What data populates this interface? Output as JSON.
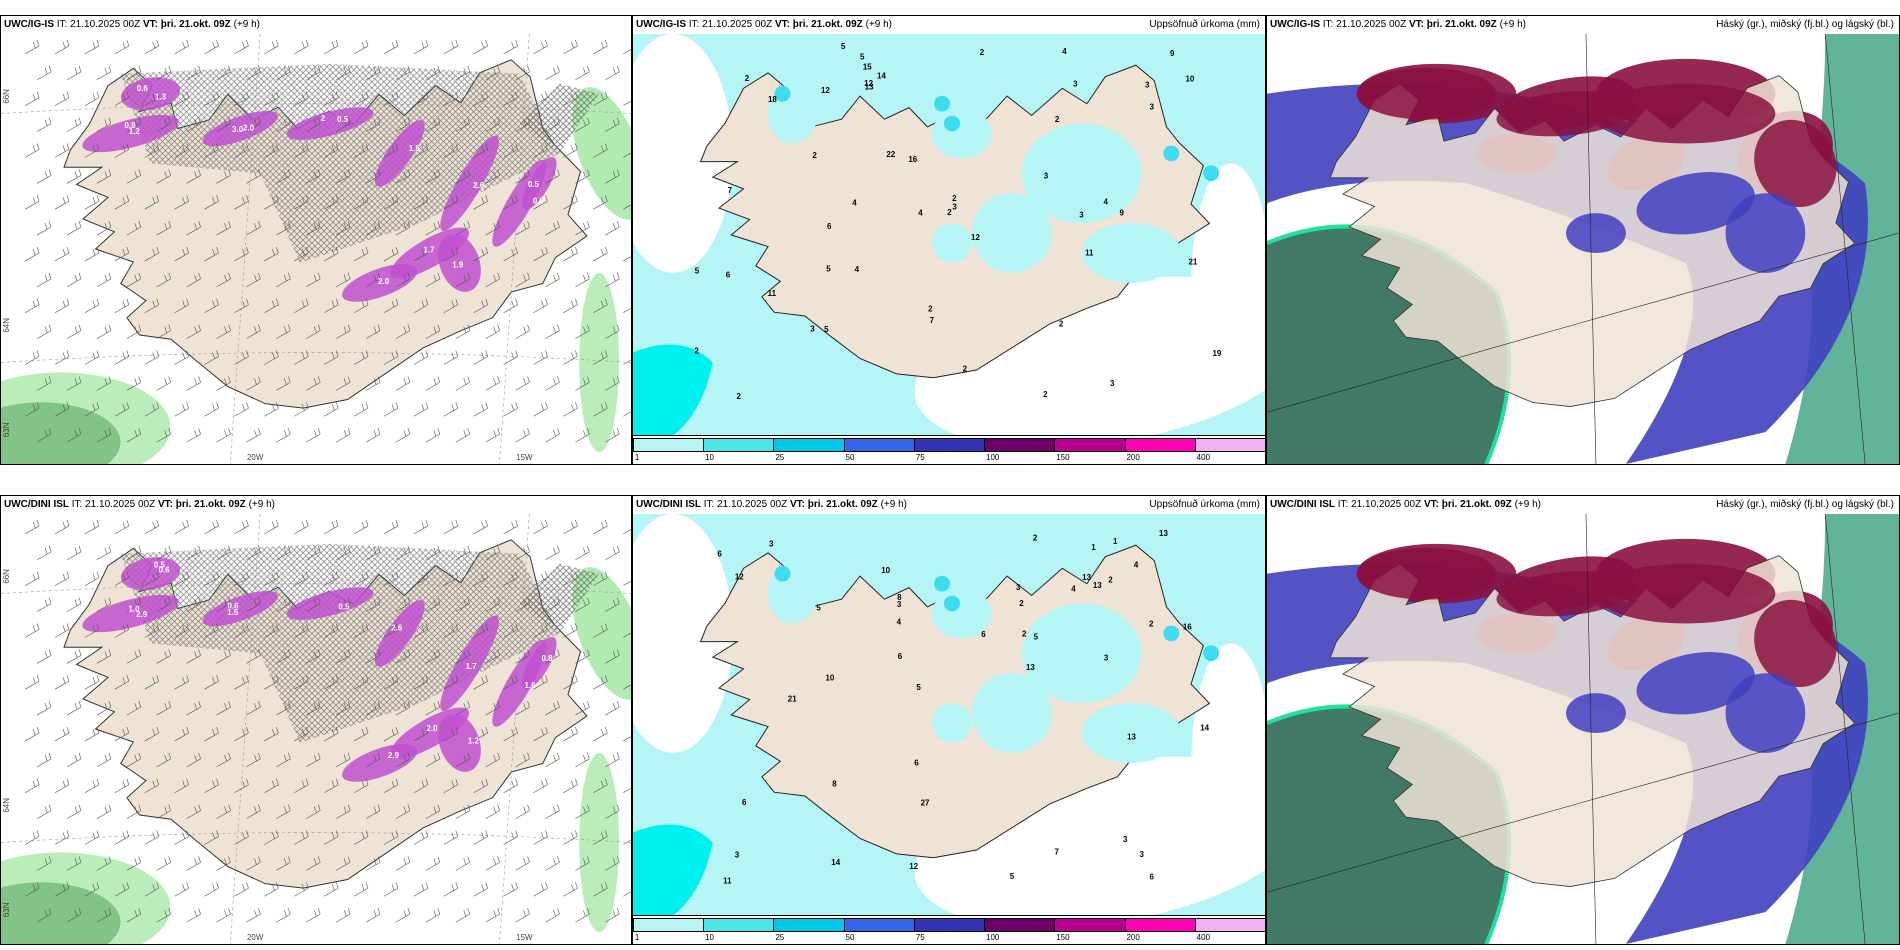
{
  "panels": [
    {
      "id": "p1",
      "model": "UWC/IG-IS",
      "it_label": "IT:",
      "it": "21.10.2025 00Z",
      "vt_label": "VT:",
      "vt": "þri. 21.okt. 09Z",
      "lead": "(+9 h)",
      "right_title": "",
      "type": "wind-precip",
      "lat_labels": [
        "66N",
        "64N",
        "63N"
      ],
      "lon_labels": [
        "20W",
        "15W"
      ],
      "values": [
        "1.3",
        "0.8",
        "3.0",
        "2",
        "1.5",
        "2.6",
        "0.8",
        "1.7",
        "2.0",
        "1.9",
        "0.5",
        "0.6",
        "1.2",
        "2.0",
        "0.5"
      ]
    },
    {
      "id": "p2",
      "model": "UWC/IG-IS",
      "it_label": "IT:",
      "it": "21.10.2025 00Z",
      "vt_label": "VT:",
      "vt": "þri. 21.okt. 09Z",
      "lead": "(+9 h)",
      "right_title": "Uppsöfnuð úrkoma (mm)",
      "type": "precip",
      "values": [
        "2",
        "5",
        "2",
        "4",
        "2",
        "3",
        "2",
        "19",
        "11",
        "9",
        "4",
        "6",
        "22",
        "21",
        "11",
        "4",
        "12",
        "15",
        "6",
        "12",
        "10",
        "14",
        "18",
        "13",
        "12",
        "16",
        "9",
        "2",
        "3",
        "3",
        "5",
        "5",
        "4",
        "3",
        "2",
        "3",
        "2",
        "3",
        "7",
        "7",
        "5",
        "2",
        "5",
        "3",
        "2",
        "4",
        "2",
        "2",
        "3",
        "2"
      ],
      "legend": [
        "1",
        "10",
        "25",
        "50",
        "75",
        "100",
        "150",
        "200",
        "400"
      ],
      "legend_colors": [
        "#b8f4f4",
        "#4de6e6",
        "#00c8e6",
        "#3366e6",
        "#3333b3",
        "#6b0066",
        "#b3008f",
        "#ff00b3",
        "#f2b3f2"
      ]
    },
    {
      "id": "p3",
      "model": "UWC/IG-IS",
      "it_label": "IT:",
      "it": "21.10.2025 00Z",
      "vt_label": "VT:",
      "vt": "þri. 21.okt. 09Z",
      "lead": "(+9 h)",
      "right_title": "Háský (gr.), miðský (fj.bl.) og lágský (bl.)",
      "type": "clouds"
    },
    {
      "id": "p4",
      "model": "UWC/DINI ISL",
      "it_label": "IT:",
      "it": "21.10.2025 00Z",
      "vt_label": "VT:",
      "vt": "þri. 21.okt. 09Z",
      "lead": "(+9 h)",
      "right_title": "",
      "type": "wind-precip",
      "lat_labels": [
        "66N",
        "64N",
        "63N"
      ],
      "lon_labels": [
        "20W",
        "15W"
      ],
      "values": [
        "0.6",
        "2.9",
        "1.5",
        "0.5",
        "2.6",
        "1.7",
        "1.6",
        "2.0",
        "2.9",
        "1.2",
        "0.8",
        "0.5",
        "1.0",
        "0.6"
      ]
    },
    {
      "id": "p5",
      "model": "UWC/DINI ISL",
      "it_label": "IT:",
      "it": "21.10.2025 00Z",
      "vt_label": "VT:",
      "vt": "þri. 21.okt. 09Z",
      "lead": "(+9 h)",
      "right_title": "Uppsöfnuð úrkoma (mm)",
      "type": "precip",
      "values": [
        "5",
        "4",
        "16",
        "13",
        "3",
        "2",
        "4",
        "6",
        "12",
        "27",
        "13",
        "13",
        "10",
        "5",
        "2",
        "13",
        "12",
        "8",
        "21",
        "11",
        "10",
        "13",
        "7",
        "6",
        "3",
        "2",
        "3",
        "4",
        "8",
        "3",
        "6",
        "2",
        "3",
        "2",
        "1",
        "1",
        "6",
        "6",
        "5",
        "14",
        "14",
        "3",
        "5",
        "6",
        "3"
      ],
      "legend": [
        "1",
        "10",
        "25",
        "50",
        "75",
        "100",
        "150",
        "200",
        "400"
      ],
      "legend_colors": [
        "#b8f4f4",
        "#4de6e6",
        "#00c8e6",
        "#3366e6",
        "#3333b3",
        "#6b0066",
        "#b3008f",
        "#ff00b3",
        "#f2b3f2"
      ]
    },
    {
      "id": "p6",
      "model": "UWC/DINI ISL",
      "it_label": "IT:",
      "it": "21.10.2025 00Z",
      "vt_label": "VT:",
      "vt": "þri. 21.okt. 09Z",
      "lead": "(+9 h)",
      "right_title": "Háský (gr.), miðský (fj.bl.) og lágský (bl.)",
      "type": "clouds"
    }
  ],
  "colors": {
    "land": "#efe3d6",
    "sea_light": "#b6f5f5",
    "sea_cyan": "#00f0f0",
    "precip_magenta": "#c050d0",
    "green": "#9ee69e",
    "dark_green": "#1e5a30",
    "cloud_blue": "#4040c0",
    "cloud_red": "#8a1040"
  }
}
